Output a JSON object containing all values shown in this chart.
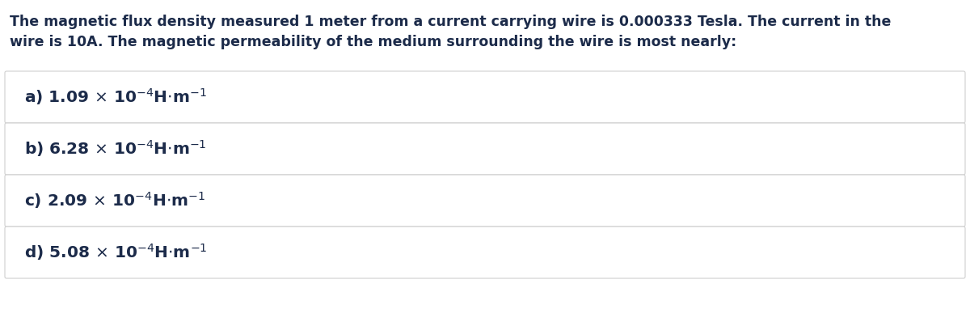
{
  "background_color": "#ffffff",
  "card_color": "#ffffff",
  "border_color": "#d0d0d0",
  "text_color": "#1c2b4a",
  "question_line1": "The magnetic flux density measured 1 meter from a current carrying wire is 0.000333 Tesla. The current in the",
  "question_line2": "wire is 10A. The magnetic permeability of the medium surrounding the wire is most nearly:",
  "option_labels": [
    "a)",
    "b)",
    "c)",
    "d)"
  ],
  "option_math": [
    "a) 1.09 × 10$^{-4}$H·m$^{-1}$",
    "b) 6.28 × 10$^{-4}$H·m$^{-1}$",
    "c) 2.09 × 10$^{-4}$H·m$^{-1}$",
    "d) 5.08 × 10$^{-4}$H·m$^{-1}$"
  ],
  "figsize": [
    12.0,
    3.98
  ],
  "dpi": 100,
  "question_fontsize": 12.5,
  "option_fontsize": 14.5
}
